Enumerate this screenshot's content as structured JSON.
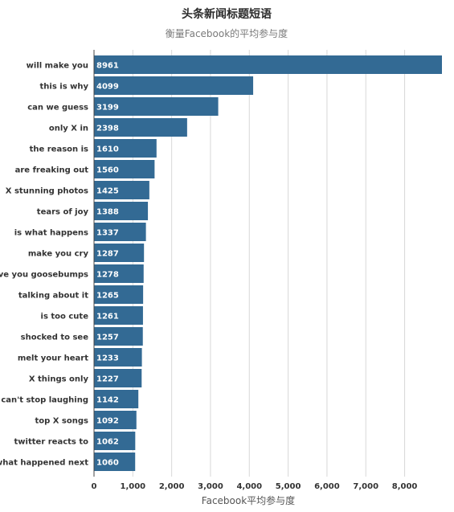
{
  "chart_data": {
    "type": "bar",
    "orientation": "horizontal",
    "title": "头条新闻标题短语",
    "subtitle": "衡量Facebook的平均参与度",
    "xlabel": "Facebook平均参与度",
    "categories": [
      "will make you",
      "this is why",
      "can we guess",
      "only X in",
      "the reason is",
      "are freaking out",
      "X stunning photos",
      "tears of joy",
      "is what happens",
      "make you cry",
      "give you goosebumps",
      "talking about it",
      "is too cute",
      "shocked to see",
      "melt your heart",
      "X things only",
      "can't stop laughing",
      "top X songs",
      "twitter reacts to",
      "what happened next"
    ],
    "values": [
      8961,
      4099,
      3199,
      2398,
      1610,
      1560,
      1425,
      1388,
      1337,
      1287,
      1278,
      1265,
      1261,
      1257,
      1233,
      1227,
      1142,
      1092,
      1062,
      1060
    ],
    "value_labels": [
      "8961",
      "4099",
      "3199",
      "2398",
      "1610",
      "1560",
      "1425",
      "1388",
      "1337",
      "1287",
      "1278",
      "1265",
      "1261",
      "1257",
      "1233",
      "1227",
      "1142",
      "1092",
      "1062",
      "1060"
    ],
    "xlim": [
      0,
      8961
    ],
    "xticks": [
      0,
      1000,
      2000,
      3000,
      4000,
      5000,
      6000,
      7000,
      8000
    ],
    "xtick_labels": [
      "0",
      "1,000",
      "2,000",
      "3,000",
      "4,000",
      "5,000",
      "6,000",
      "7,000",
      "8,000"
    ],
    "grid": true,
    "legend": "none",
    "bar_color": "#336a94",
    "grid_color": "#d8d8d8"
  }
}
